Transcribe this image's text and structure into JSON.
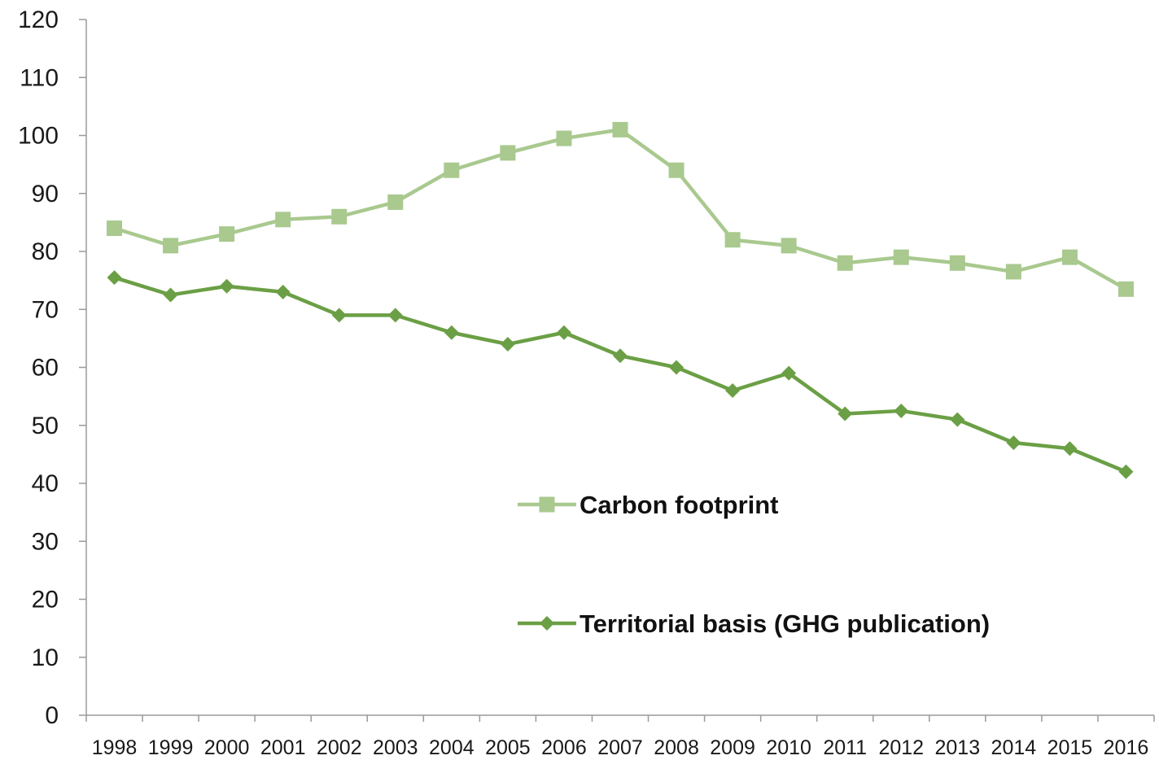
{
  "chart_data": {
    "type": "line",
    "title": "",
    "xlabel": "",
    "ylabel": "",
    "ylim": [
      0,
      120
    ],
    "y_ticks": [
      0,
      10,
      20,
      30,
      40,
      50,
      60,
      70,
      80,
      90,
      100,
      110,
      120
    ],
    "categories": [
      "1998",
      "1999",
      "2000",
      "2001",
      "2002",
      "2003",
      "2004",
      "2005",
      "2006",
      "2007",
      "2008",
      "2009",
      "2010",
      "2011",
      "2012",
      "2013",
      "2014",
      "2015",
      "2016"
    ],
    "grid": false,
    "legend_position": "center",
    "series": [
      {
        "name": "Carbon footprint",
        "marker": "square",
        "color": "#a9c98f",
        "values": [
          84,
          81,
          83,
          85.5,
          86,
          88.5,
          94,
          97,
          99.5,
          101,
          94,
          82,
          81,
          78,
          79,
          78,
          76.5,
          79,
          73.5
        ]
      },
      {
        "name": "Territorial basis (GHG publication)",
        "marker": "diamond",
        "color": "#6b9f45",
        "values": [
          75.5,
          72.5,
          74,
          73,
          69,
          69,
          66,
          64,
          66,
          62,
          60,
          56,
          59,
          52,
          52.5,
          51,
          47,
          46,
          42
        ]
      }
    ],
    "axis_color": "#9a9a9a"
  }
}
